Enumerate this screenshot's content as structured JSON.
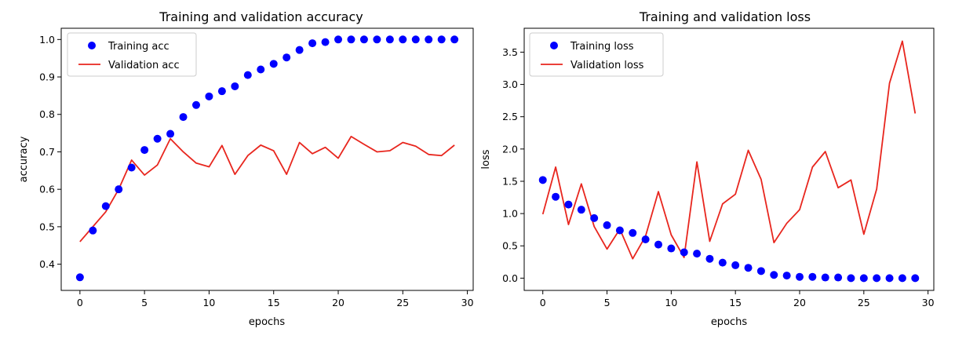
{
  "chart_data": [
    {
      "type": "line",
      "title": "Training and validation accuracy",
      "xlabel": "epochs",
      "ylabel": "accuracy",
      "xlim": [
        -1.45,
        30.45
      ],
      "ylim": [
        0.33,
        1.03
      ],
      "xticks": [
        0,
        5,
        10,
        15,
        20,
        25,
        30
      ],
      "yticks": [
        0.4,
        0.5,
        0.6,
        0.7,
        0.8,
        0.9,
        1.0
      ],
      "xtick_labels": [
        "0",
        "5",
        "10",
        "15",
        "20",
        "25",
        "30"
      ],
      "ytick_labels": [
        "0.4",
        "0.5",
        "0.6",
        "0.7",
        "0.8",
        "0.9",
        "1.0"
      ],
      "legend": "top-left",
      "grid": false,
      "series": [
        {
          "name": "Training acc",
          "style": "points",
          "color": "#0000ff",
          "x": [
            0,
            1,
            2,
            3,
            4,
            5,
            6,
            7,
            8,
            9,
            10,
            11,
            12,
            13,
            14,
            15,
            16,
            17,
            18,
            19,
            20,
            21,
            22,
            23,
            24,
            25,
            26,
            27,
            28,
            29
          ],
          "values": [
            0.365,
            0.49,
            0.555,
            0.6,
            0.658,
            0.705,
            0.735,
            0.748,
            0.793,
            0.825,
            0.848,
            0.862,
            0.875,
            0.905,
            0.92,
            0.935,
            0.952,
            0.972,
            0.99,
            0.993,
            1.0,
            1.0,
            1.0,
            1.0,
            1.0,
            1.0,
            1.0,
            1.0,
            1.0,
            1.0
          ]
        },
        {
          "name": "Validation acc",
          "style": "line",
          "color": "#e8261e",
          "x": [
            0,
            1,
            2,
            3,
            4,
            5,
            6,
            7,
            8,
            9,
            10,
            11,
            12,
            13,
            14,
            15,
            16,
            17,
            18,
            19,
            20,
            21,
            22,
            23,
            24,
            25,
            26,
            27,
            28,
            29
          ],
          "values": [
            0.46,
            0.5,
            0.54,
            0.6,
            0.678,
            0.638,
            0.665,
            0.735,
            0.7,
            0.67,
            0.66,
            0.717,
            0.64,
            0.69,
            0.718,
            0.703,
            0.64,
            0.725,
            0.695,
            0.712,
            0.683,
            0.741,
            0.72,
            0.7,
            0.703,
            0.725,
            0.715,
            0.693,
            0.69,
            0.718
          ]
        }
      ]
    },
    {
      "type": "line",
      "title": "Training and validation loss",
      "xlabel": "epochs",
      "ylabel": "loss",
      "xlim": [
        -1.45,
        30.45
      ],
      "ylim": [
        -0.19,
        3.87
      ],
      "xticks": [
        0,
        5,
        10,
        15,
        20,
        25,
        30
      ],
      "yticks": [
        0.0,
        0.5,
        1.0,
        1.5,
        2.0,
        2.5,
        3.0,
        3.5
      ],
      "xtick_labels": [
        "0",
        "5",
        "10",
        "15",
        "20",
        "25",
        "30"
      ],
      "ytick_labels": [
        "0.0",
        "0.5",
        "1.0",
        "1.5",
        "2.0",
        "2.5",
        "3.0",
        "3.5"
      ],
      "legend": "top-left",
      "grid": false,
      "series": [
        {
          "name": "Training loss",
          "style": "points",
          "color": "#0000ff",
          "x": [
            0,
            1,
            2,
            3,
            4,
            5,
            6,
            7,
            8,
            9,
            10,
            11,
            12,
            13,
            14,
            15,
            16,
            17,
            18,
            19,
            20,
            21,
            22,
            23,
            24,
            25,
            26,
            27,
            28,
            29
          ],
          "values": [
            1.52,
            1.26,
            1.14,
            1.06,
            0.93,
            0.82,
            0.74,
            0.7,
            0.6,
            0.52,
            0.46,
            0.4,
            0.38,
            0.3,
            0.24,
            0.2,
            0.16,
            0.11,
            0.05,
            0.04,
            0.02,
            0.02,
            0.01,
            0.01,
            0.0,
            0.0,
            0.0,
            0.0,
            0.0,
            0.0
          ]
        },
        {
          "name": "Validation loss",
          "style": "line",
          "color": "#e8261e",
          "x": [
            0,
            1,
            2,
            3,
            4,
            5,
            6,
            7,
            8,
            9,
            10,
            11,
            12,
            13,
            14,
            15,
            16,
            17,
            18,
            19,
            20,
            21,
            22,
            23,
            24,
            25,
            26,
            27,
            28,
            29
          ],
          "values": [
            0.99,
            1.72,
            0.83,
            1.46,
            0.8,
            0.45,
            0.76,
            0.3,
            0.65,
            1.34,
            0.67,
            0.32,
            1.8,
            0.57,
            1.15,
            1.3,
            1.98,
            1.53,
            0.55,
            0.85,
            1.06,
            1.72,
            1.96,
            1.4,
            1.52,
            0.68,
            1.38,
            3.02,
            3.67,
            2.55
          ]
        }
      ]
    }
  ]
}
